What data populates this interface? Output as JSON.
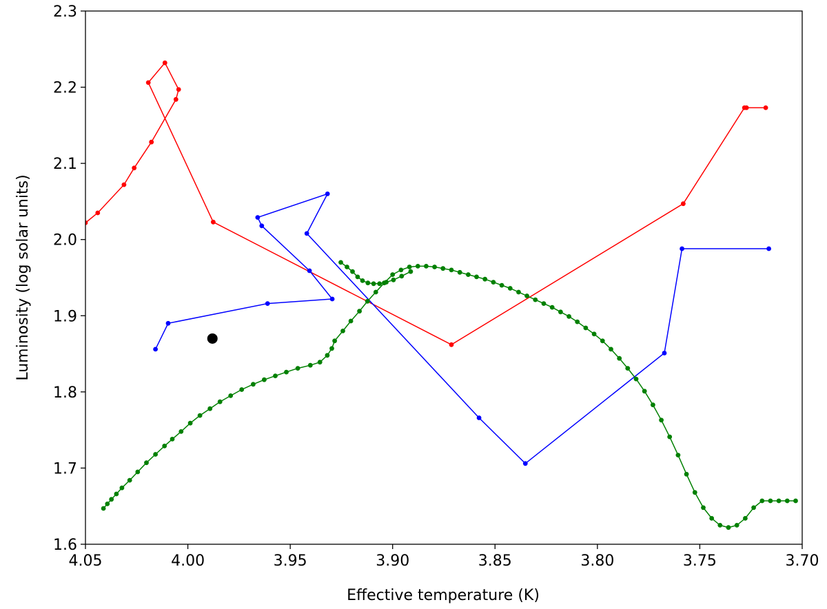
{
  "chart_data": {
    "type": "line",
    "title": "",
    "xlabel": "Effective temperature (K)",
    "ylabel": "Luminosity (log solar units)",
    "xlim": [
      4.05,
      3.7
    ],
    "ylim": [
      1.6,
      2.3
    ],
    "x_inverted": true,
    "x_ticks": [
      "4.05",
      "4.00",
      "3.95",
      "3.90",
      "3.85",
      "3.80",
      "3.75",
      "3.70"
    ],
    "y_ticks": [
      "1.6",
      "1.7",
      "1.8",
      "1.9",
      "2.0",
      "2.1",
      "2.2",
      "2.3"
    ],
    "grid": false,
    "series": [
      {
        "color": "#ff0000",
        "x": [
          4.05,
          4.044,
          4.0312,
          4.0262,
          4.0178,
          4.0058,
          4.0045,
          4.0112,
          4.0193,
          3.9876,
          3.8713,
          3.7581,
          3.7282,
          3.7272,
          3.7178
        ],
        "y": [
          2.022,
          2.035,
          2.072,
          2.094,
          2.128,
          2.184,
          2.197,
          2.232,
          2.206,
          2.023,
          1.862,
          2.047,
          2.173,
          2.173,
          2.173
        ]
      },
      {
        "color": "#0000ff",
        "x": [
          4.0158,
          4.0096,
          3.9611,
          3.9295,
          3.9406,
          3.9639,
          3.9659,
          3.9318,
          3.9419,
          3.8578,
          3.8352,
          3.7673,
          3.7587,
          3.7163
        ],
        "y": [
          1.856,
          1.89,
          1.916,
          1.922,
          1.959,
          2.018,
          2.029,
          2.06,
          2.008,
          1.766,
          1.706,
          1.851,
          1.988,
          1.988
        ]
      },
      {
        "color": "#008000",
        "x": [
          4.0412,
          4.0393,
          4.0373,
          4.0349,
          4.0322,
          4.0284,
          4.0245,
          4.0202,
          4.0158,
          4.0114,
          4.0076,
          4.0033,
          3.9988,
          3.9941,
          3.9892,
          3.9843,
          3.9791,
          3.9737,
          3.9681,
          3.9627,
          3.9573,
          3.9519,
          3.9463,
          3.9402,
          3.9355,
          3.9319,
          3.9297,
          3.9283,
          3.9243,
          3.9204,
          3.9162,
          3.9123,
          3.9082,
          3.9041,
          3.9,
          3.8959,
          3.8918,
          3.8877,
          3.8836,
          3.8795,
          3.8754,
          3.8713,
          3.8672,
          3.8631,
          3.859,
          3.8549,
          3.8508,
          3.8467,
          3.8426,
          3.8385,
          3.8344,
          3.8303,
          3.8262,
          3.8221,
          3.818,
          3.8139,
          3.8098,
          3.8057,
          3.8016,
          3.7975,
          3.7934,
          3.7893,
          3.7852,
          3.7811,
          3.777,
          3.7729,
          3.7688,
          3.7647,
          3.7606,
          3.7565,
          3.7524,
          3.7483,
          3.7442,
          3.7401,
          3.736,
          3.7319,
          3.7278,
          3.7237,
          3.7196,
          3.7155,
          3.7114,
          3.7073,
          3.7032
        ],
        "y": [
          1.647,
          1.653,
          1.659,
          1.666,
          1.674,
          1.684,
          1.695,
          1.707,
          1.718,
          1.729,
          1.738,
          1.748,
          1.759,
          1.769,
          1.778,
          1.787,
          1.795,
          1.803,
          1.81,
          1.816,
          1.821,
          1.826,
          1.831,
          1.835,
          1.839,
          1.848,
          1.857,
          1.867,
          1.88,
          1.893,
          1.906,
          1.919,
          1.931,
          1.943,
          1.954,
          1.96,
          1.964,
          1.965,
          1.965,
          1.964,
          1.962,
          1.96,
          1.957,
          1.954,
          1.951,
          1.948,
          1.944,
          1.94,
          1.936,
          1.931,
          1.926,
          1.921,
          1.916,
          1.911,
          1.905,
          1.899,
          1.892,
          1.884,
          1.876,
          1.867,
          1.856,
          1.844,
          1.831,
          1.817,
          1.801,
          1.783,
          1.763,
          1.741,
          1.717,
          1.692,
          1.668,
          1.648,
          1.634,
          1.625,
          1.622,
          1.625,
          1.634,
          1.648,
          1.657,
          1.657,
          1.657,
          1.657,
          1.657
        ]
      },
      {
        "color": "#008000",
        "x": [
          3.9253,
          3.9223,
          3.9196,
          3.9171,
          3.9147,
          3.9121,
          3.9093,
          3.9064,
          3.9031,
          3.8996,
          3.8956,
          3.8912
        ],
        "y": [
          1.97,
          1.964,
          1.958,
          1.951,
          1.946,
          1.943,
          1.942,
          1.942,
          1.944,
          1.947,
          1.952,
          1.958
        ]
      }
    ],
    "marker": {
      "x": 3.988,
      "y": 1.87,
      "color": "#000000"
    }
  }
}
